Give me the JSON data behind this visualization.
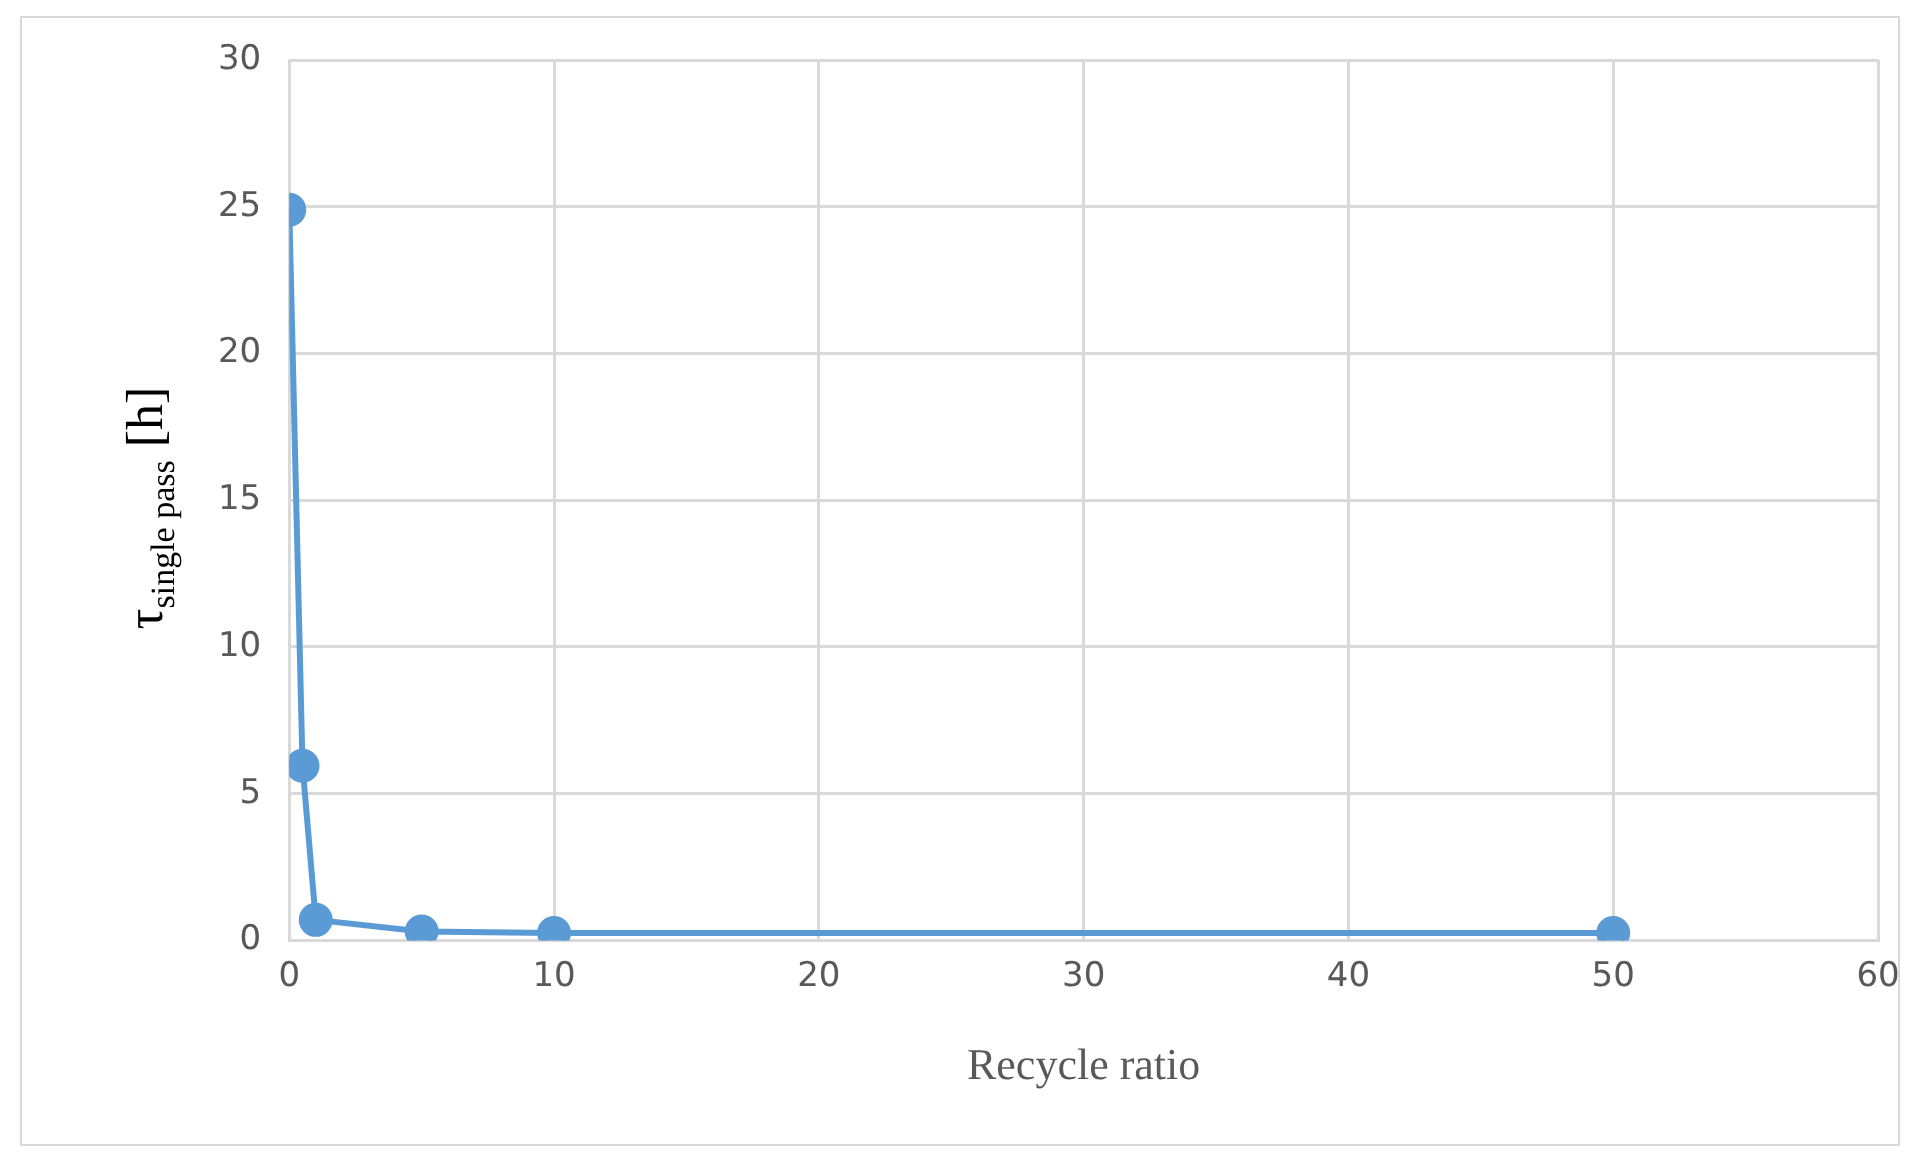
{
  "chart_data": {
    "type": "line",
    "xlabel": "Recycle ratio",
    "ylabel": "τ$_{single pass}$ [h]",
    "x": [
      0,
      0.5,
      1,
      5,
      10,
      50
    ],
    "series": [
      {
        "color": "#5b9bd5",
        "values": [
          24.9,
          5.95,
          0.7,
          0.3,
          0.25,
          0.25
        ]
      }
    ],
    "xlim": [
      0,
      60
    ],
    "xticks": [
      0,
      10,
      20,
      30,
      40,
      50,
      60
    ],
    "ylim": [
      0,
      30
    ],
    "yticks": [
      0,
      5,
      10,
      15,
      20,
      25,
      30
    ],
    "grid": true,
    "legend": false,
    "marker": "circle",
    "line_style": "solid"
  }
}
